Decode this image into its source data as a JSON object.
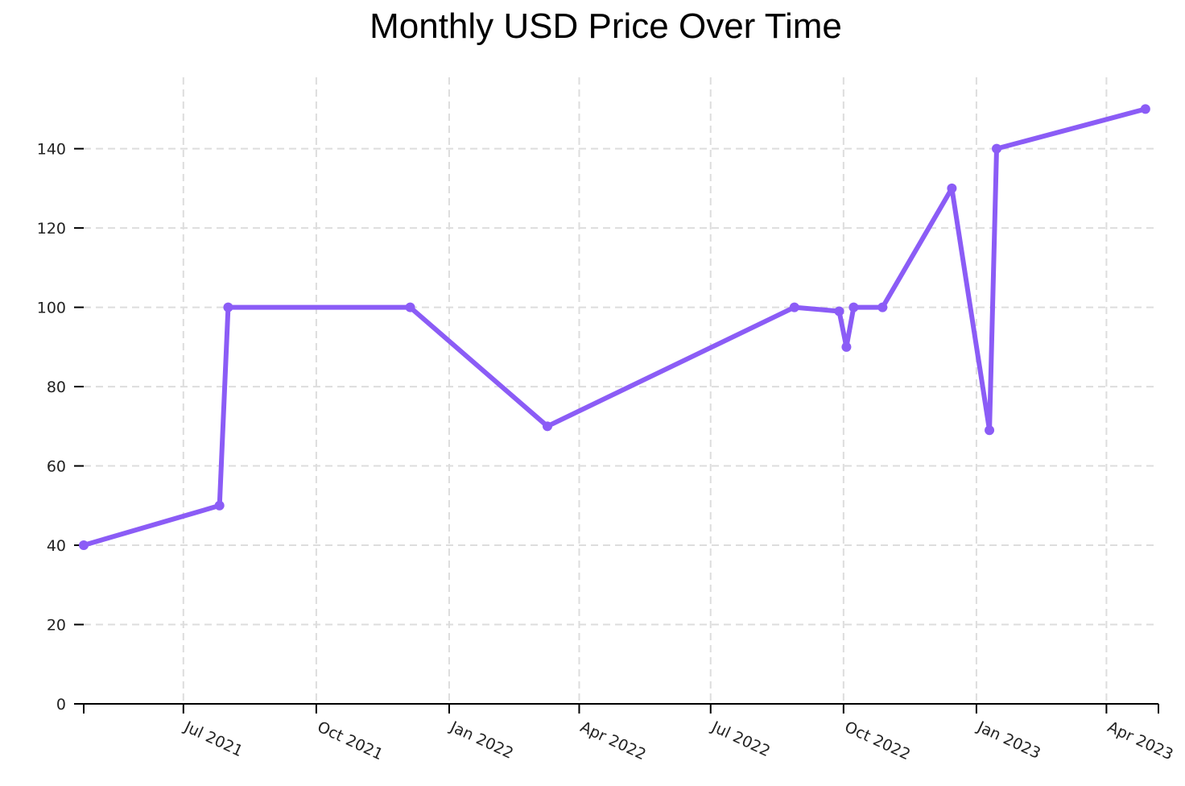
{
  "chart_data": {
    "type": "line",
    "title": "Monthly USD Price Over Time",
    "xlabel": "",
    "ylabel": "",
    "grid": true,
    "line_color": "#8b5cf6",
    "x_tick_labels": [
      "Jul 2021",
      "Oct 2021",
      "Jan 2022",
      "Apr 2022",
      "Jul 2022",
      "Oct 2022",
      "Jan 2023",
      "Apr 2023"
    ],
    "x_ticks": [
      "2021-07-01",
      "2021-10-01",
      "2022-01-01",
      "2022-04-01",
      "2022-07-01",
      "2022-10-01",
      "2023-01-01",
      "2023-04-01"
    ],
    "xlim": [
      "2021-04-23",
      "2023-05-07"
    ],
    "y_ticks": [
      0,
      20,
      40,
      60,
      80,
      100,
      120,
      140
    ],
    "ylim": [
      0,
      158
    ],
    "series": [
      {
        "x": [
          "2021-04-23",
          "2021-07-26",
          "2021-08-01",
          "2021-12-05",
          "2022-03-10",
          "2022-08-28",
          "2022-09-28",
          "2022-10-03",
          "2022-10-08",
          "2022-10-28",
          "2022-12-15",
          "2023-01-10",
          "2023-01-15",
          "2023-04-28"
        ],
        "y": [
          40,
          50,
          100,
          100,
          70,
          100,
          99,
          90,
          100,
          100,
          130,
          69,
          140,
          150
        ]
      }
    ]
  }
}
